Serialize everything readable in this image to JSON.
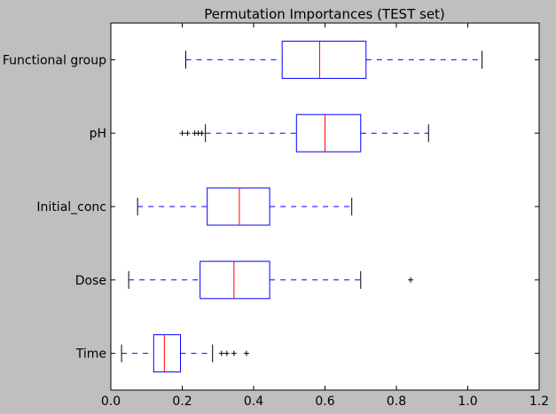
{
  "chart_data": {
    "type": "boxplot",
    "title": "Permutation Importances (TEST set)",
    "xlabel": "",
    "ylabel": "",
    "xlim": [
      0.0,
      1.2
    ],
    "xticks": [
      "0.0",
      "0.2",
      "0.4",
      "0.6",
      "0.8",
      "1.0",
      "1.2"
    ],
    "grid": false,
    "orientation": "horizontal",
    "colors": {
      "box": "#0000ff",
      "whisker": "#0000ff",
      "median": "#ff0000",
      "cap": "#000000",
      "flier": "#000000",
      "background": "#bfbfbf",
      "plot_area": "#ffffff"
    },
    "boxes": [
      {
        "label": "Functional group",
        "whisker_low": 0.21,
        "q1": 0.48,
        "median": 0.585,
        "q3": 0.715,
        "whisker_high": 1.04,
        "fliers": []
      },
      {
        "label": "pH",
        "whisker_low": 0.265,
        "q1": 0.52,
        "median": 0.6,
        "q3": 0.7,
        "whisker_high": 0.89,
        "fliers": [
          0.2,
          0.215,
          0.235,
          0.245,
          0.255
        ]
      },
      {
        "label": "Initial_conc",
        "whisker_low": 0.075,
        "q1": 0.27,
        "median": 0.36,
        "q3": 0.445,
        "whisker_high": 0.675,
        "fliers": []
      },
      {
        "label": "Dose",
        "whisker_low": 0.05,
        "q1": 0.25,
        "median": 0.345,
        "q3": 0.445,
        "whisker_high": 0.7,
        "fliers": [
          0.84
        ]
      },
      {
        "label": "Time",
        "whisker_low": 0.03,
        "q1": 0.12,
        "median": 0.15,
        "q3": 0.195,
        "whisker_high": 0.285,
        "fliers": [
          0.31,
          0.325,
          0.345,
          0.38
        ]
      }
    ]
  }
}
